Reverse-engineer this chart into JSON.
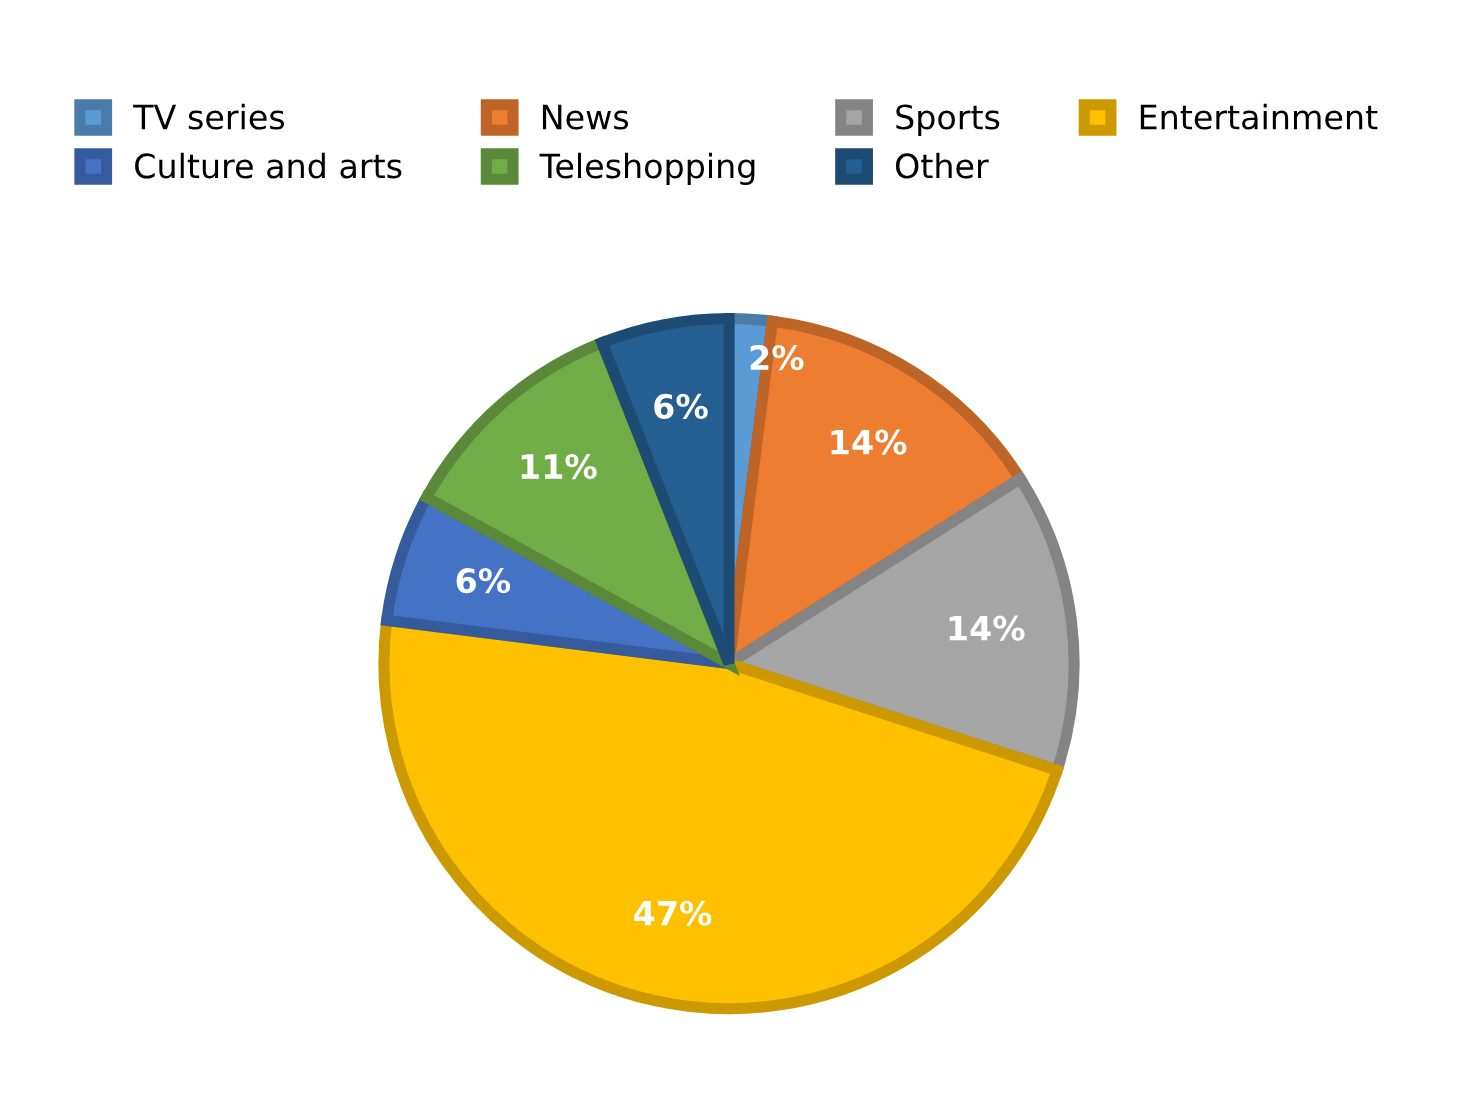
{
  "chart_data": {
    "type": "pie",
    "categories": [
      "TV series",
      "News",
      "Sports",
      "Entertainment",
      "Culture and arts",
      "Teleshopping",
      "Other"
    ],
    "values": [
      2,
      14,
      14,
      47,
      6,
      11,
      6
    ],
    "colors": [
      "#5b9bd5",
      "#ed7d31",
      "#a5a5a5",
      "#ffc000",
      "#4472c4",
      "#70ad47",
      "#255e91"
    ],
    "value_labels": [
      "2%",
      "14%",
      "14%",
      "47%",
      "6%",
      "11%",
      "6%"
    ],
    "legend": "top"
  }
}
